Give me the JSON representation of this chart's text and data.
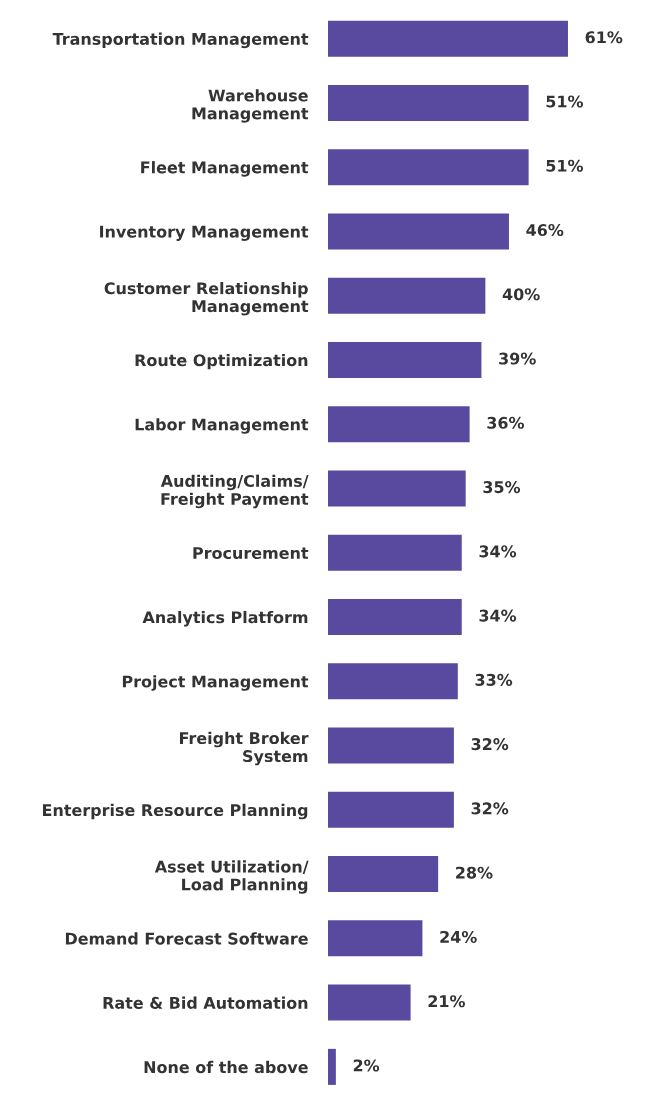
{
  "chart_data": {
    "type": "bar",
    "orientation": "horizontal",
    "data_labels": true,
    "categories": [
      "Transportation Management",
      "Warehouse\nManagement",
      "Fleet Management",
      "Inventory Management",
      "Customer Relationship\nManagement",
      "Route Optimization",
      "Labor Management",
      "Auditing/Claims/\nFreight Payment",
      "Procurement",
      "Analytics Platform",
      "Project Management",
      "Freight Broker\nSystem",
      "Enterprise Resource Planning",
      "Asset Utilization/\nLoad Planning",
      "Demand Forecast Software",
      "Rate & Bid Automation",
      "None of the above"
    ],
    "values": [
      61,
      51,
      51,
      46,
      40,
      39,
      36,
      35,
      34,
      34,
      33,
      32,
      32,
      28,
      24,
      21,
      2
    ],
    "value_labels": [
      "61%",
      "51%",
      "51%",
      "46%",
      "40%",
      "39%",
      "36%",
      "35%",
      "34%",
      "34%",
      "33%",
      "32%",
      "32%",
      "28%",
      "24%",
      "21%",
      "2%"
    ],
    "color": "#5a4a9f"
  }
}
